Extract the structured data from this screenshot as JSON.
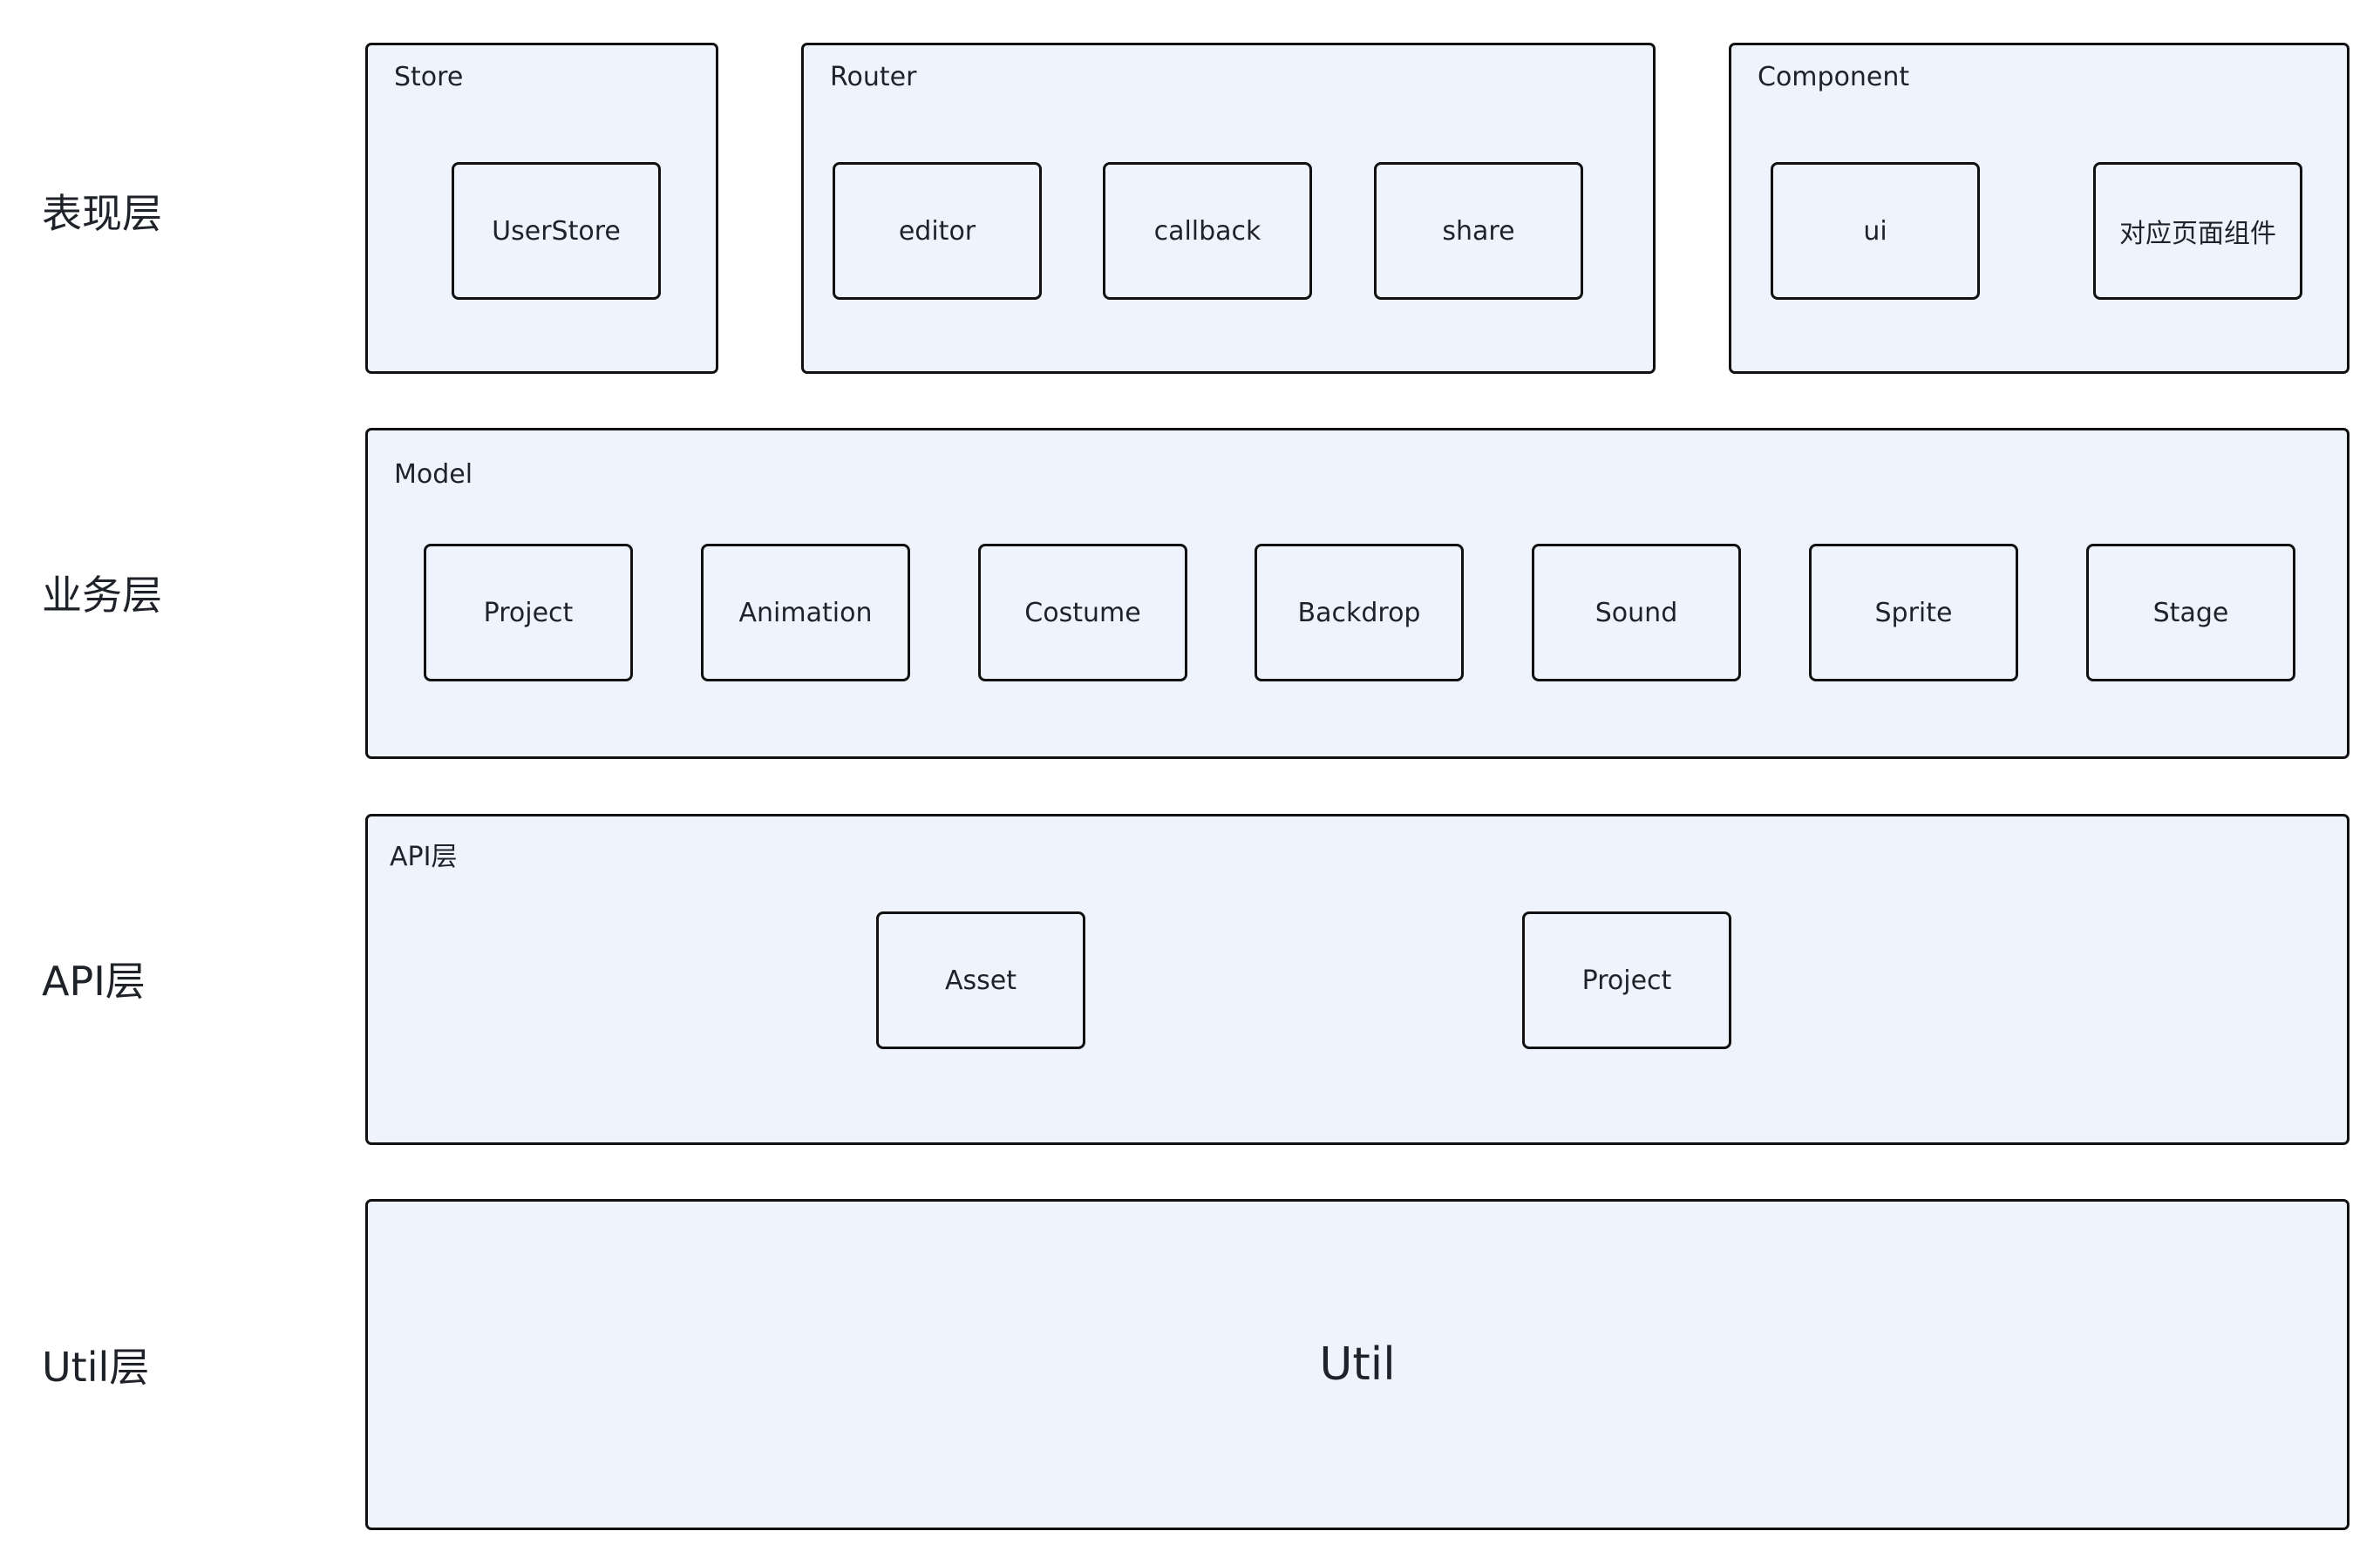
{
  "layers": {
    "presentation": "表现层",
    "business": "业务层",
    "api": "API层",
    "util": "Util层"
  },
  "presentation": {
    "store": {
      "title": "Store",
      "items": [
        "UserStore"
      ]
    },
    "router": {
      "title": "Router",
      "items": [
        "editor",
        "callback",
        "share"
      ]
    },
    "component": {
      "title": "Component",
      "items": [
        "ui",
        "对应页面组件"
      ]
    }
  },
  "business": {
    "model": {
      "title": "Model",
      "items": [
        "Project",
        "Animation",
        "Costume",
        "Backdrop",
        "Sound",
        "Sprite",
        "Stage"
      ]
    }
  },
  "api": {
    "title": "API层",
    "items": [
      "Asset",
      "Project"
    ]
  },
  "util": {
    "label": "Util"
  },
  "colors": {
    "box_fill": "#eff4fc",
    "border": "#111111",
    "text": "#1f2329"
  }
}
